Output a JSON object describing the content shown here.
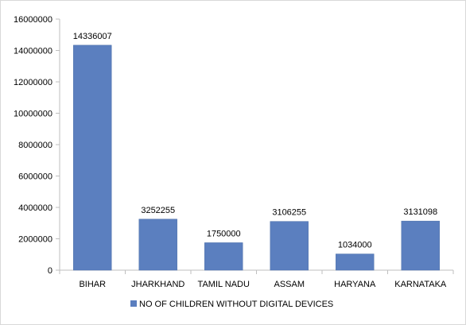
{
  "chart_data": {
    "type": "bar",
    "categories": [
      "BIHAR",
      "JHARKHAND",
      "TAMIL NADU",
      "ASSAM",
      "HARYANA",
      "KARNATAKA"
    ],
    "series": [
      {
        "name": "NO OF CHILDREN WITHOUT DIGITAL DEVICES",
        "values": [
          14336007,
          3252255,
          1750000,
          3106255,
          1034000,
          3131098
        ],
        "data_labels": [
          "14336007",
          "3252255",
          "1750000",
          "3106255",
          "1034000",
          "3131098"
        ],
        "color": "#5b7fbf"
      }
    ],
    "title": "",
    "xlabel": "",
    "ylabel": "",
    "ylim": [
      0,
      16000000
    ],
    "y_ticks": [
      0,
      2000000,
      4000000,
      6000000,
      8000000,
      10000000,
      12000000,
      14000000,
      16000000
    ],
    "y_tick_labels": [
      "0",
      "2000000",
      "4000000",
      "6000000",
      "8000000",
      "10000000",
      "12000000",
      "14000000",
      "16000000"
    ],
    "grid": false,
    "legend_position": "bottom"
  }
}
